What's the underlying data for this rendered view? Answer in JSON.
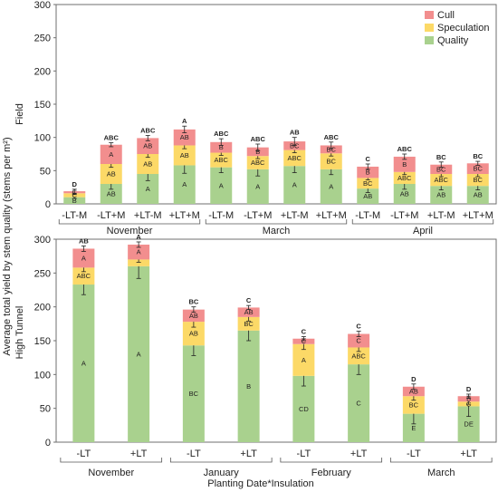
{
  "colors": {
    "cull": "#f28e8e",
    "speculation": "#fcd967",
    "quality": "#a9d18e"
  },
  "legend": [
    "Cull",
    "Speculation",
    "Quality"
  ],
  "y_axis_title": "Average total yield by stem quality (stems per m²)",
  "x_axis_title": "Planting Date*Insulation",
  "chart_data": [
    {
      "type": "bar",
      "stacked": true,
      "panel_label": "Field",
      "ylim": [
        0,
        300
      ],
      "yticks": [
        0,
        50,
        100,
        150,
        200,
        250,
        300
      ],
      "categories": [
        "-LT-M",
        "-LT+M",
        "+LT-M",
        "+LT+M",
        "-LT-M",
        "-LT+M",
        "+LT-M",
        "+LT+M",
        "-LT-M",
        "-LT+M",
        "+LT-M",
        "+LT+M"
      ],
      "groups": [
        {
          "name": "November",
          "from": 0,
          "to": 3
        },
        {
          "name": "March",
          "from": 4,
          "to": 7
        },
        {
          "name": "April",
          "from": 8,
          "to": 11
        }
      ],
      "series": [
        {
          "name": "Quality",
          "values": [
            10,
            30,
            45,
            58,
            55,
            52,
            57,
            52,
            23,
            30,
            27,
            27
          ],
          "labels": [
            "B",
            "AB",
            "A",
            "A",
            "A",
            "A",
            "A",
            "A",
            "AB",
            "AB",
            "AB",
            "AB"
          ],
          "errors": [
            2,
            8,
            10,
            12,
            8,
            10,
            10,
            8,
            6,
            8,
            6,
            6
          ]
        },
        {
          "name": "Speculation",
          "values": [
            6,
            30,
            30,
            30,
            22,
            20,
            24,
            24,
            16,
            18,
            18,
            18
          ],
          "labels": [
            "C",
            "AB",
            "AB",
            "AB",
            "ABC",
            "ABC",
            "ABC",
            "BC",
            "BC",
            "ABC",
            "ABC",
            "BC"
          ],
          "errors": [
            2,
            5,
            5,
            5,
            4,
            4,
            4,
            4,
            3,
            4,
            4,
            4
          ]
        },
        {
          "name": "Cull",
          "values": [
            3,
            29,
            24,
            24,
            16,
            13,
            13,
            12,
            17,
            23,
            14,
            16
          ],
          "labels": [
            "C",
            "A",
            "AB",
            "AB",
            "B",
            "B",
            "BC",
            "BC",
            "B",
            "B",
            "BC",
            "BC"
          ],
          "errors": [
            3,
            3,
            4,
            5,
            5,
            5,
            6,
            5,
            4,
            4,
            4,
            3
          ]
        }
      ],
      "total_labels": [
        "D",
        "ABC",
        "ABC",
        "A",
        "ABC",
        "ABC",
        "AB",
        "ABC",
        "C",
        "ABC",
        "BC",
        "BC"
      ]
    },
    {
      "type": "bar",
      "stacked": true,
      "panel_label": "High Tunnel",
      "ylim": [
        0,
        300
      ],
      "yticks": [
        0,
        50,
        100,
        150,
        200,
        250,
        300
      ],
      "categories": [
        "-LT",
        "+LT",
        "-LT",
        "+LT",
        "-LT",
        "+LT",
        "-LT",
        "+LT"
      ],
      "groups": [
        {
          "name": "November",
          "from": 0,
          "to": 1
        },
        {
          "name": "January",
          "from": 2,
          "to": 3
        },
        {
          "name": "February",
          "from": 4,
          "to": 5
        },
        {
          "name": "March",
          "from": 6,
          "to": 7
        }
      ],
      "series": [
        {
          "name": "Quality",
          "values": [
            233,
            260,
            143,
            165,
            98,
            115,
            42,
            53
          ],
          "labels": [
            "A",
            "A",
            "BC",
            "B",
            "CD",
            "C",
            "E",
            "DE"
          ],
          "errors": [
            15,
            18,
            15,
            15,
            15,
            15,
            15,
            15
          ]
        },
        {
          "name": "Speculation",
          "values": [
            25,
            10,
            35,
            20,
            47,
            25,
            26,
            7
          ],
          "labels": [
            "ABC",
            "",
            "AB",
            "BC",
            "A",
            "ABC",
            "BC",
            "C"
          ],
          "errors": [
            6,
            4,
            8,
            6,
            8,
            6,
            6,
            4
          ]
        },
        {
          "name": "Cull",
          "values": [
            28,
            22,
            18,
            14,
            8,
            20,
            14,
            8
          ],
          "labels": [
            "A",
            "A",
            "AB",
            "AB",
            "C",
            "C",
            "AB",
            "B"
          ],
          "errors": [
            4,
            4,
            4,
            3,
            3,
            4,
            4,
            3
          ]
        }
      ],
      "total_labels": [
        "AB",
        "A",
        "BC",
        "C",
        "C",
        "C",
        "D",
        "D"
      ]
    }
  ]
}
